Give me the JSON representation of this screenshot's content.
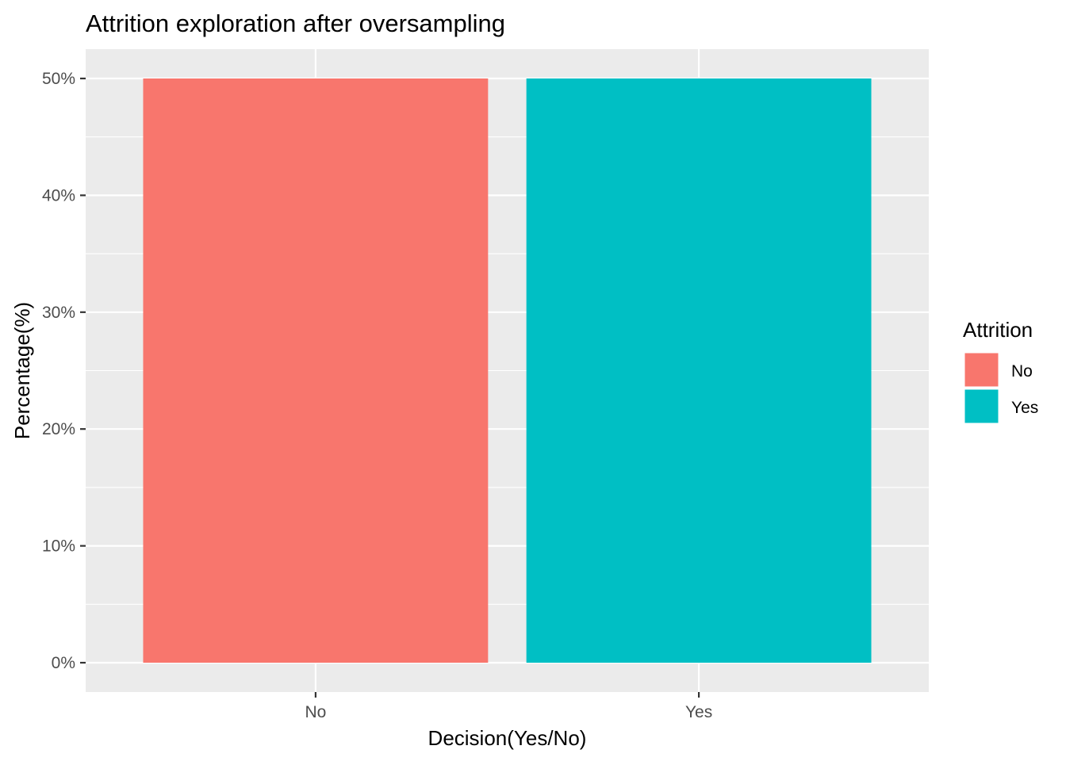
{
  "chart_data": {
    "type": "bar",
    "title": "Attrition exploration after oversampling",
    "xlabel": "Decision(Yes/No)",
    "ylabel": "Percentage(%)",
    "categories": [
      "No",
      "Yes"
    ],
    "values": [
      50,
      50
    ],
    "ylim": [
      0,
      50
    ],
    "y_ticks": [
      0,
      10,
      20,
      30,
      40,
      50
    ],
    "y_tick_labels": [
      "0%",
      "10%",
      "20%",
      "30%",
      "40%",
      "50%"
    ],
    "colors": [
      "#F8766D",
      "#00BFC4"
    ],
    "panel_background": "#EBEBEB",
    "gridline_color": "#FFFFFF",
    "grid": true,
    "legend": {
      "title": "Attrition",
      "placement": "right",
      "entries": [
        {
          "label": "No",
          "color": "#F8766D"
        },
        {
          "label": "Yes",
          "color": "#00BFC4"
        }
      ]
    }
  }
}
